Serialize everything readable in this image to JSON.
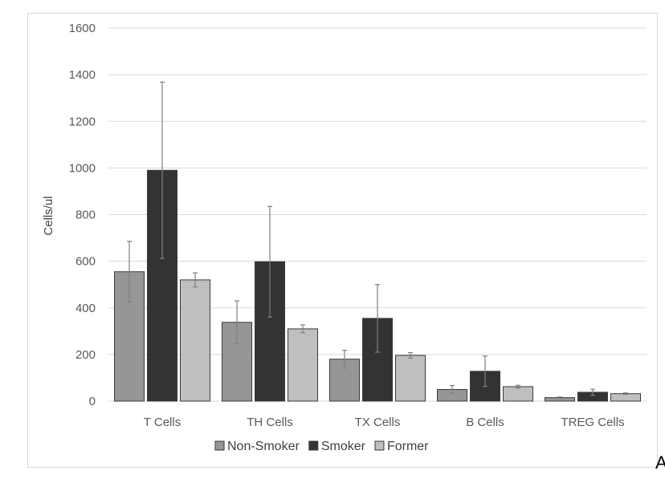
{
  "corner_mark": "A",
  "colors": {
    "Non-Smoker": "#969696",
    "Smoker": "#333333",
    "Former": "#bfbfbf",
    "grid": "#d9d9d9",
    "errorbar": "#7f7f7f"
  },
  "chart_data": {
    "type": "bar",
    "title": "",
    "xlabel": "",
    "ylabel": "Cells/ul",
    "ylim": [
      0,
      1600
    ],
    "yticks": [
      0,
      200,
      400,
      600,
      800,
      1000,
      1200,
      1400,
      1600
    ],
    "grid": true,
    "legend_position": "bottom",
    "categories": [
      "T Cells",
      "TH Cells",
      "TX Cells",
      "B Cells",
      "TREG Cells"
    ],
    "series": [
      {
        "name": "Non-Smoker",
        "values": [
          555,
          338,
          180,
          50,
          15
        ],
        "errors": [
          130,
          92,
          38,
          17,
          3
        ]
      },
      {
        "name": "Smoker",
        "values": [
          990,
          598,
          355,
          128,
          38
        ],
        "errors": [
          378,
          237,
          145,
          65,
          13
        ]
      },
      {
        "name": "Former",
        "values": [
          520,
          310,
          196,
          62,
          32
        ],
        "errors": [
          30,
          17,
          12,
          6,
          3
        ]
      }
    ]
  }
}
